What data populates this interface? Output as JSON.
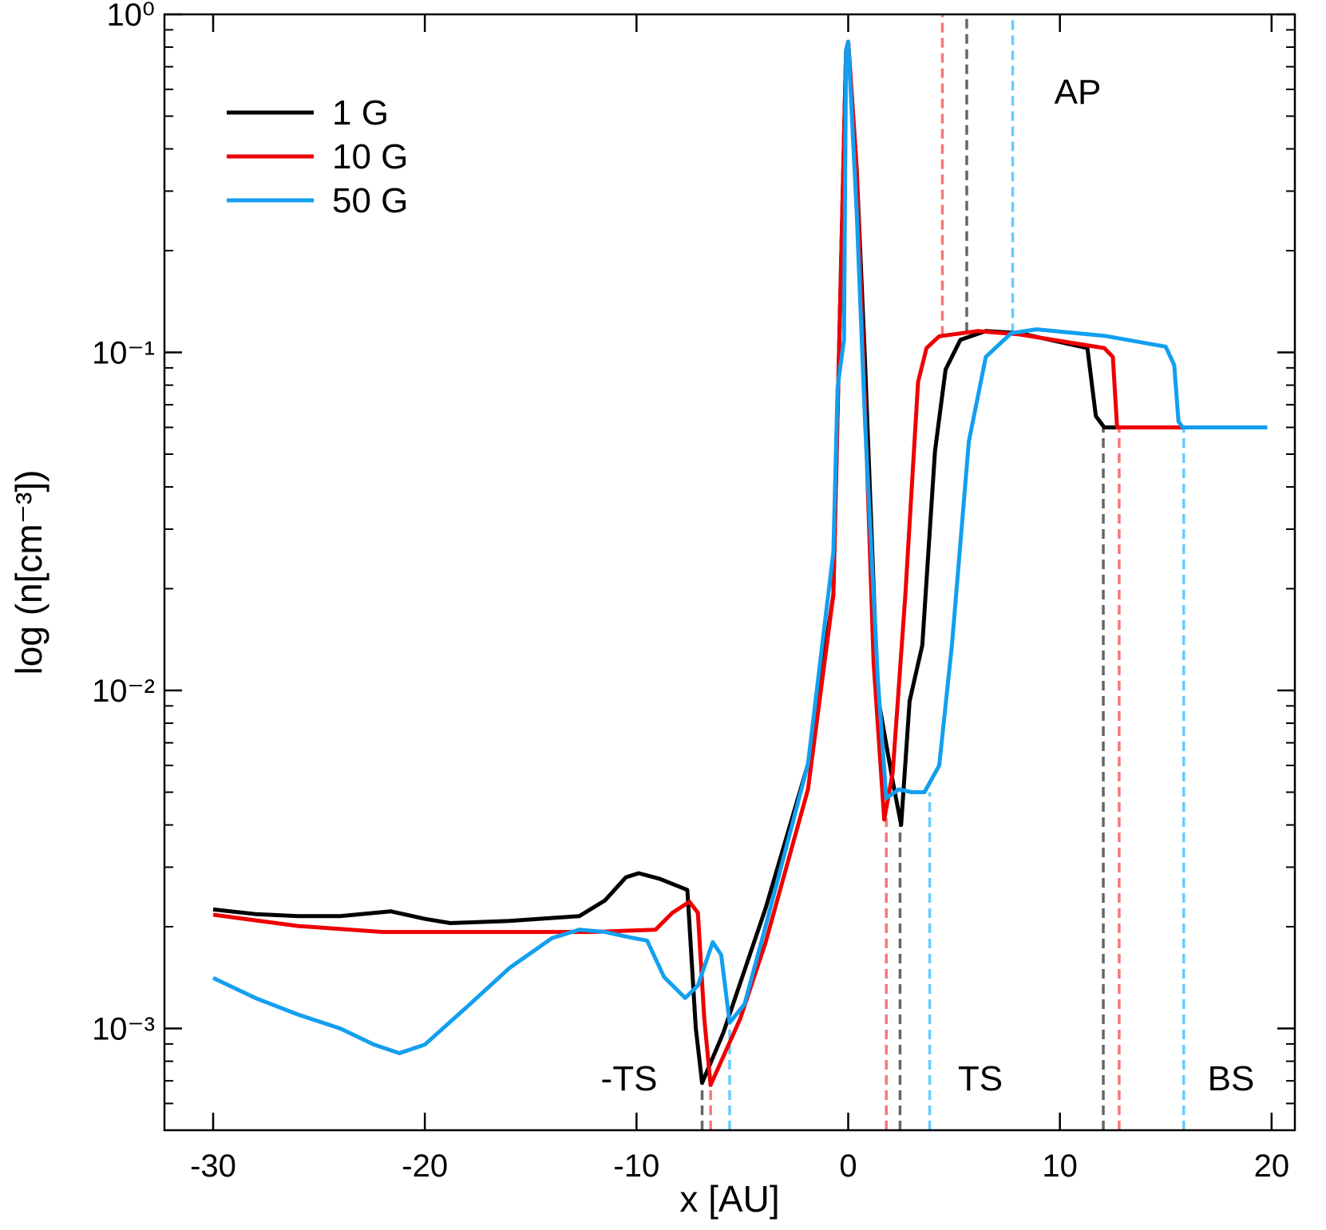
{
  "chart_data": {
    "type": "line",
    "xlabel": "x [AU]",
    "ylabel": "log (n[cm⁻³])",
    "xlim": [
      -32.3,
      21.1
    ],
    "ylim": [
      0.0005,
      1
    ],
    "yscale": "log",
    "xticks": [
      -30,
      -20,
      -10,
      0,
      10,
      20
    ],
    "yticks": [
      {
        "value": 1,
        "label": "10⁰"
      },
      {
        "value": 0.1,
        "label": "10⁻¹"
      },
      {
        "value": 0.01,
        "label": "10⁻²"
      },
      {
        "value": 0.001,
        "label": "10⁻³"
      }
    ],
    "yminorticks": [
      0.0005,
      0.0006,
      0.0007,
      0.0008,
      0.0009,
      0.002,
      0.003,
      0.004,
      0.005,
      0.006,
      0.007,
      0.008,
      0.009,
      0.02,
      0.03,
      0.04,
      0.05,
      0.06,
      0.07,
      0.08,
      0.09,
      0.2,
      0.3,
      0.4,
      0.5,
      0.6,
      0.7,
      0.8,
      0.9
    ],
    "legend": "upper left",
    "series": [
      {
        "name": "1 G",
        "color": "#000000",
        "x": [
          -30,
          -28,
          -26,
          -24,
          -21.6,
          -20,
          -18.8,
          -16,
          -12.7,
          -11.5,
          -10.5,
          -9.9,
          -8.9,
          -7.6,
          -7.2,
          -6.9,
          -5.9,
          -3.9,
          -1.9,
          -0.7,
          -0.1,
          0,
          0.4,
          0.8,
          1.4,
          2.1,
          2.5,
          2.9,
          3.5,
          4.1,
          4.6,
          5.3,
          6.5,
          8.1,
          11.3,
          11.7,
          12.1,
          19.8
        ],
        "values": [
          0.00225,
          0.00218,
          0.00215,
          0.00215,
          0.00222,
          0.00211,
          0.00205,
          0.00208,
          0.00215,
          0.00239,
          0.0028,
          0.00288,
          0.00277,
          0.00257,
          0.001,
          0.00069,
          0.00097,
          0.00227,
          0.00605,
          0.0192,
          0.78,
          0.83,
          0.35,
          0.092,
          0.0096,
          0.0054,
          0.004,
          0.0093,
          0.0136,
          0.051,
          0.089,
          0.109,
          0.1156,
          0.114,
          0.103,
          0.0648,
          0.06,
          0.06
        ]
      },
      {
        "name": "10 G",
        "color": "#ee0000",
        "x": [
          -30,
          -26,
          -22,
          -18,
          -12,
          -9.1,
          -8.3,
          -7.5,
          -7.1,
          -6.8,
          -6.5,
          -5.1,
          -3.9,
          -1.9,
          -0.7,
          -0.1,
          0,
          0.4,
          0.8,
          1.2,
          1.7,
          2.1,
          2.7,
          3.3,
          3.7,
          4.3,
          6.1,
          8.1,
          12.1,
          12.5,
          12.7,
          19.8
        ],
        "values": [
          0.00217,
          0.00201,
          0.00193,
          0.00193,
          0.00193,
          0.00196,
          0.0022,
          0.00237,
          0.0022,
          0.00107,
          0.00068,
          0.00107,
          0.0018,
          0.0051,
          0.0192,
          0.78,
          0.83,
          0.35,
          0.0687,
          0.0121,
          0.00415,
          0.0057,
          0.0192,
          0.0817,
          0.103,
          0.1116,
          0.1156,
          0.113,
          0.103,
          0.097,
          0.06,
          0.06
        ]
      },
      {
        "name": "50 G",
        "color": "#139ff0",
        "x": [
          -30,
          -28,
          -26,
          -24,
          -22.4,
          -21.2,
          -20,
          -18,
          -16,
          -14,
          -12.7,
          -11.5,
          -10.3,
          -9.5,
          -8.7,
          -7.7,
          -7.1,
          -6.4,
          -6,
          -5.6,
          -4.9,
          -3.9,
          -1.9,
          -0.7,
          -0.5,
          -0.2,
          -0.1,
          0,
          0.4,
          0.8,
          1.4,
          1.8,
          2.4,
          3.0,
          3.6,
          4.3,
          4.9,
          5.7,
          6.5,
          7.7,
          8.9,
          12.1,
          15,
          15.4,
          15.6,
          15.8,
          19.8
        ],
        "values": [
          0.00141,
          0.00123,
          0.0011,
          0.001,
          0.000896,
          0.000845,
          0.000896,
          0.00116,
          0.00151,
          0.00185,
          0.00196,
          0.00193,
          0.00186,
          0.00182,
          0.00142,
          0.00123,
          0.00134,
          0.0018,
          0.00165,
          0.00104,
          0.00118,
          0.00201,
          0.00605,
          0.0257,
          0.079,
          0.109,
          0.78,
          0.83,
          0.26,
          0.061,
          0.0108,
          0.0048,
          0.0051,
          0.005,
          0.005,
          0.006,
          0.0136,
          0.0545,
          0.097,
          0.114,
          0.117,
          0.112,
          0.104,
          0.0917,
          0.0625,
          0.06,
          0.06
        ]
      }
    ],
    "vlines": [
      {
        "x": -6.9,
        "y": [
          0.0005,
          0.00069
        ],
        "color": "#666666"
      },
      {
        "x": -6.5,
        "y": [
          0.0005,
          0.00068
        ],
        "color": "#f77777"
      },
      {
        "x": -5.6,
        "y": [
          0.0005,
          0.00105
        ],
        "color": "#66ccff"
      },
      {
        "x": 1.8,
        "y": [
          0.0005,
          0.0042
        ],
        "color": "#f77777"
      },
      {
        "x": 2.45,
        "y": [
          0.0005,
          0.004
        ],
        "color": "#666666"
      },
      {
        "x": 3.85,
        "y": [
          0.0005,
          0.005
        ],
        "color": "#66ccff"
      },
      {
        "x": 12.05,
        "y": [
          0.0005,
          0.06
        ],
        "color": "#666666"
      },
      {
        "x": 12.8,
        "y": [
          0.0005,
          0.06
        ],
        "color": "#f77777"
      },
      {
        "x": 15.85,
        "y": [
          0.0005,
          0.06
        ],
        "color": "#66ccff"
      },
      {
        "x": 4.45,
        "y": [
          0.112,
          1
        ],
        "color": "#f77777"
      },
      {
        "x": 5.6,
        "y": [
          0.115,
          1
        ],
        "color": "#666666"
      },
      {
        "x": 7.77,
        "y": [
          0.114,
          1
        ],
        "color": "#66ccff"
      }
    ],
    "annotations": [
      "AP",
      "-TS",
      "TS",
      "BS"
    ]
  }
}
